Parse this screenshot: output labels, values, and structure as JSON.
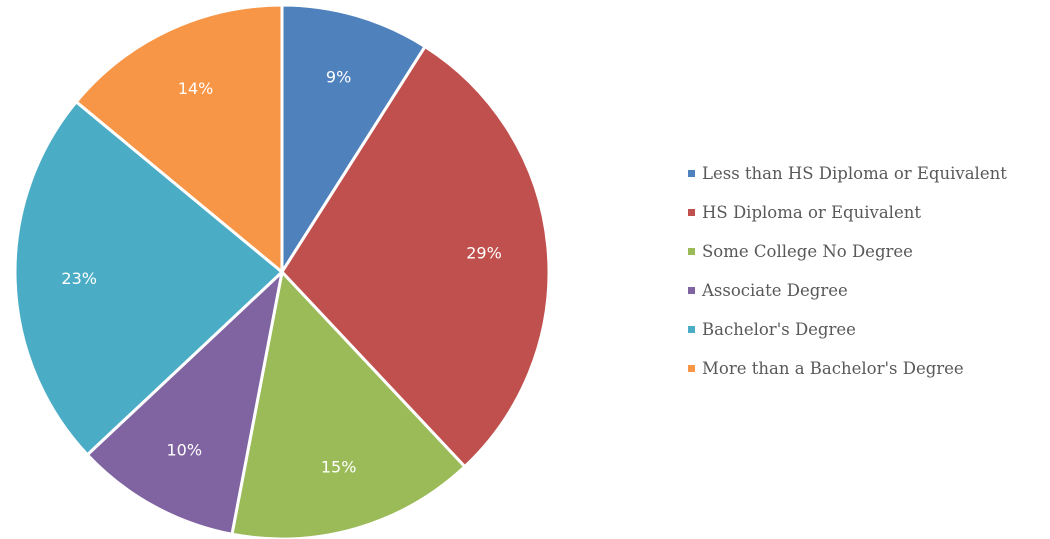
{
  "chart_data": {
    "type": "pie",
    "title": "",
    "legend_position": "right",
    "categories": [
      "Less than HS Diploma or Equivalent",
      "HS Diploma or Equivalent",
      "Some College No Degree",
      "Associate Degree",
      "Bachelor's Degree",
      "More than a Bachelor's Degree"
    ],
    "values": [
      9,
      29,
      15,
      10,
      23,
      14
    ],
    "labels": [
      "9%",
      "29%",
      "15%",
      "10%",
      "23%",
      "14%"
    ],
    "colors": [
      "#4F81BD",
      "#C0504D",
      "#9BBB59",
      "#8064A2",
      "#4BACC6",
      "#F79646"
    ]
  }
}
